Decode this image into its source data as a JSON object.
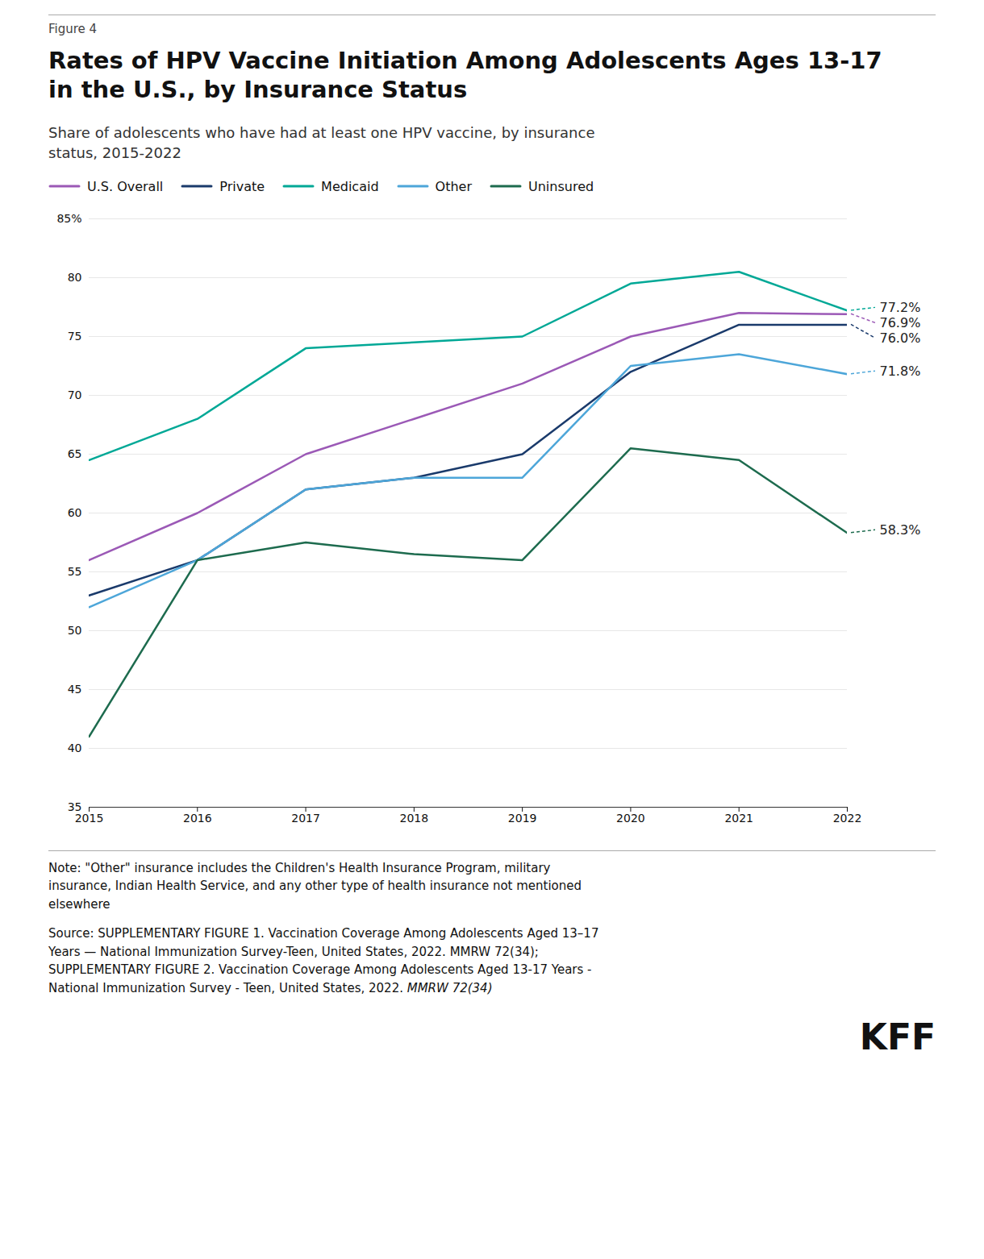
{
  "chart_data": {
    "type": "line",
    "figure_label": "Figure 4",
    "title": "Rates of HPV Vaccine Initiation Among Adolescents Ages 13-17\nin the U.S., by Insurance Status",
    "subtitle": "Share of adolescents who have had at least one HPV vaccine, by insurance\nstatus, 2015-2022",
    "x": [
      2015,
      2016,
      2017,
      2018,
      2019,
      2020,
      2021,
      2022
    ],
    "series": [
      {
        "name": "U.S. Overall",
        "color": "#9B59B6",
        "line_style": "solid",
        "values": [
          56.0,
          60.0,
          65.0,
          68.0,
          71.0,
          75.0,
          77.0,
          76.9
        ],
        "value_labels": [
          null,
          null,
          null,
          null,
          null,
          null,
          null,
          "76.9%"
        ]
      },
      {
        "name": "Private",
        "color": "#1A3A6B",
        "line_style": "solid",
        "values": [
          53.0,
          56.0,
          62.0,
          63.0,
          65.0,
          72.0,
          76.0,
          76.0
        ],
        "value_labels": [
          null,
          null,
          null,
          null,
          null,
          null,
          null,
          "76.0%"
        ]
      },
      {
        "name": "Medicaid",
        "color": "#00A896",
        "line_style": "solid",
        "values": [
          64.5,
          68.0,
          74.0,
          74.5,
          75.0,
          79.5,
          80.5,
          77.2
        ],
        "value_labels": [
          null,
          null,
          null,
          null,
          null,
          null,
          null,
          "77.2%"
        ]
      },
      {
        "name": "Other",
        "color": "#4DA6D9",
        "line_style": "solid",
        "values": [
          52.0,
          56.0,
          62.0,
          63.0,
          63.0,
          72.5,
          73.5,
          71.8
        ],
        "value_labels": [
          null,
          null,
          null,
          null,
          null,
          null,
          null,
          "71.8%"
        ]
      },
      {
        "name": "Uninsured",
        "color": "#1D6B4E",
        "line_style": "solid",
        "values": [
          41.0,
          56.0,
          57.5,
          56.5,
          56.0,
          65.5,
          64.5,
          58.3
        ],
        "value_labels": [
          null,
          null,
          null,
          null,
          null,
          null,
          null,
          "58.3%"
        ]
      }
    ],
    "xlim": [
      2015,
      2022
    ],
    "xticks": [
      2015,
      2016,
      2017,
      2018,
      2019,
      2020,
      2021,
      2022
    ],
    "ylim": [
      35,
      85
    ],
    "yticks": [
      35,
      40,
      45,
      50,
      55,
      60,
      65,
      70,
      75,
      80,
      {
        "value": 85,
        "label": "85%"
      }
    ],
    "grid": true,
    "legend": "top-left",
    "note": "Note: \"Other\" insurance includes the Children's Health Insurance Program, military\ninsurance, Indian Health Service, and any other type of health insurance not mentioned\nelsewhere",
    "source": "Source: SUPPLEMENTARY FIGURE 1. Vaccination Coverage Among Adolescents Aged 13–17\nYears — National Immunization Survey-Teen, United States, 2022. MMRW 72(34);\nSUPPLEMENTARY FIGURE 2. Vaccination Coverage Among Adolescents Aged 13-17 Years -\nNational Immunization Survey - Teen, United States, 2022. ",
    "source_italic": "MMRW 72(34)",
    "logo": "KFF"
  }
}
